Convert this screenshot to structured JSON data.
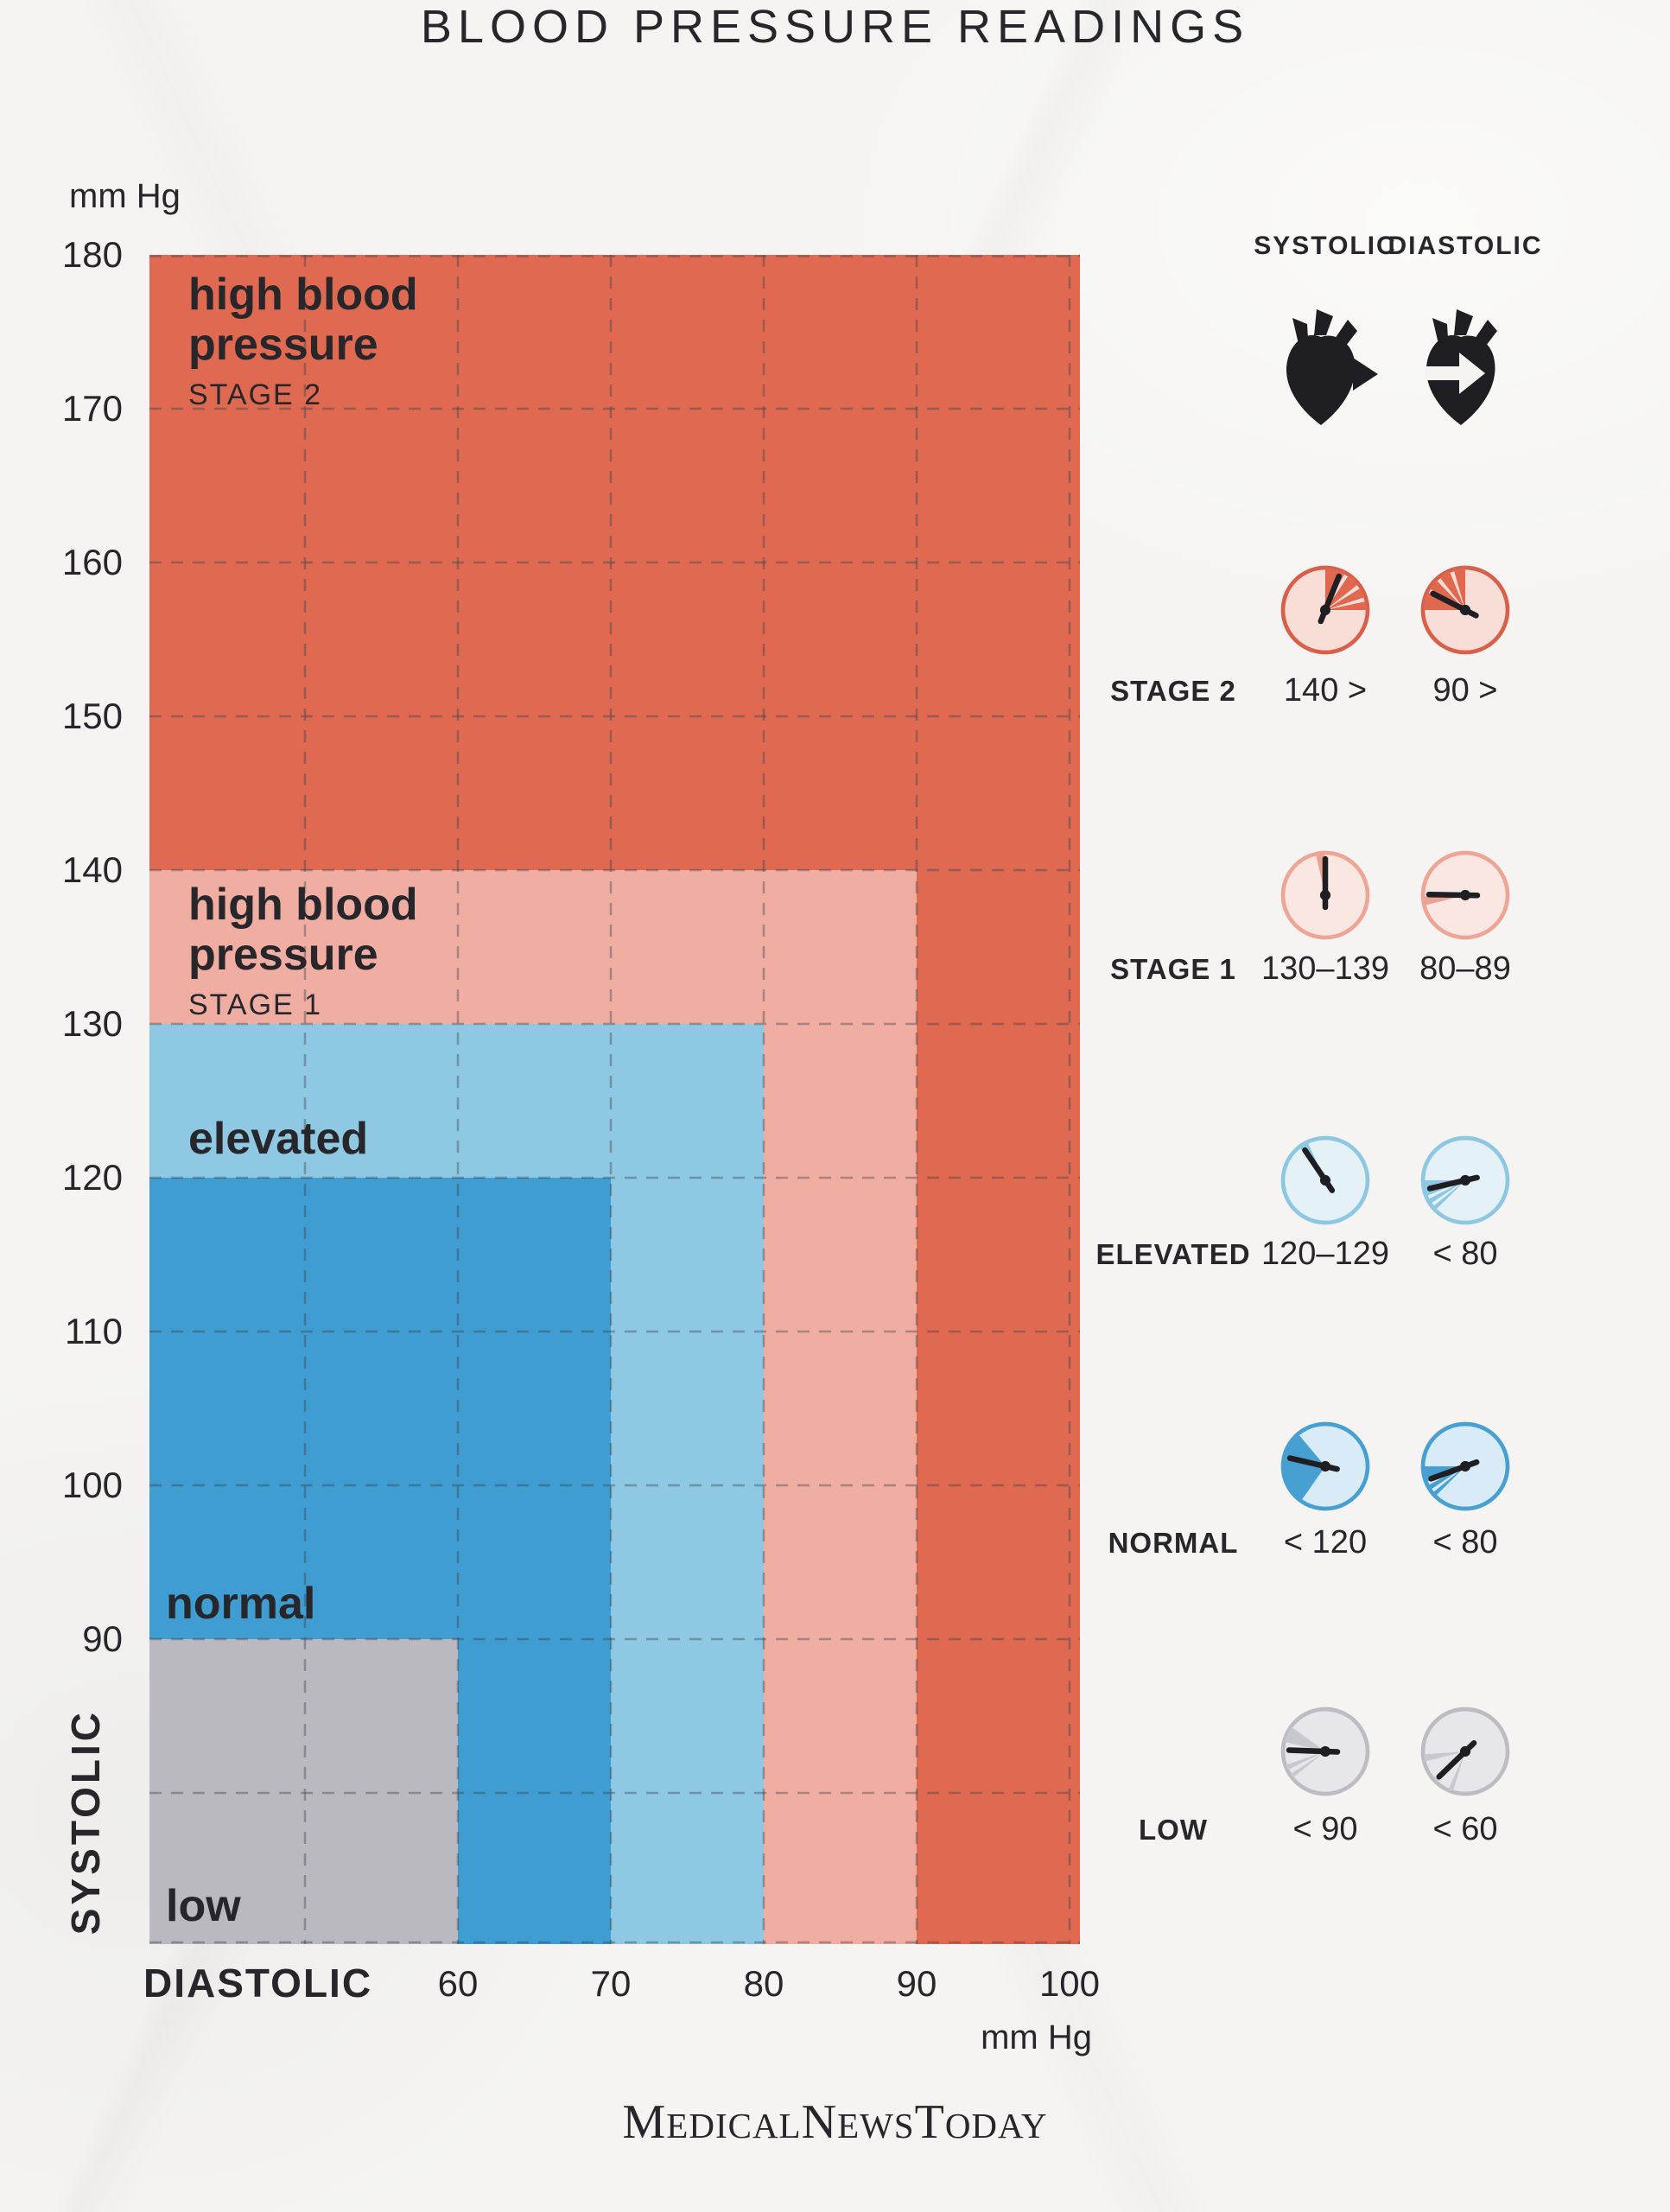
{
  "title": "BLOOD PRESSURE READINGS",
  "chart": {
    "unit": "mm Hg",
    "y_axis_label": "SYSTOLIC",
    "x_axis_label": "DIASTOLIC",
    "y_ticks": [
      "180",
      "170",
      "160",
      "150",
      "140",
      "130",
      "120",
      "110",
      "100",
      "90"
    ],
    "x_ticks": [
      "60",
      "70",
      "80",
      "90",
      "100"
    ],
    "zones": {
      "stage2": {
        "title": "high blood pressure",
        "sub": "STAGE 2"
      },
      "stage1": {
        "title": "high blood pressure",
        "sub": "STAGE 1"
      },
      "elevated": {
        "label": "elevated"
      },
      "normal": {
        "label": "normal"
      },
      "low": {
        "label": "low"
      }
    }
  },
  "legend": {
    "systolic_header": "SYSTOLIC",
    "diastolic_header": "DIASTOLIC",
    "rows": [
      {
        "label": "STAGE 2",
        "systolic": "140 >",
        "diastolic": "90 >",
        "sys_gauge": {
          "fill": "#f9ded7",
          "stroke": "#d8604a",
          "wedge": "#e0684f",
          "wedges": [
            [
              0,
              28
            ],
            [
              34,
              52
            ],
            [
              58,
              72
            ],
            [
              78,
              90
            ]
          ],
          "needle": 22
        },
        "dia_gauge": {
          "fill": "#f9ded7",
          "stroke": "#d8604a",
          "wedge": "#e0684f",
          "wedges": [
            [
              270,
              295
            ],
            [
              301,
              316
            ],
            [
              322,
              338
            ],
            [
              344,
              360
            ]
          ],
          "needle": 297
        }
      },
      {
        "label": "STAGE 1",
        "systolic": "130–139",
        "diastolic": "80–89",
        "sys_gauge": {
          "fill": "#fbe7e2",
          "stroke": "#eda695",
          "wedge": "#eca291",
          "wedges": [
            [
              347,
              359
            ]
          ],
          "needle": 0
        },
        "dia_gauge": {
          "fill": "#fbe7e2",
          "stroke": "#eda695",
          "wedge": "#eca291",
          "wedges": [
            [
              256,
              268
            ]
          ],
          "needle": 271
        }
      },
      {
        "label": "ELEVATED",
        "systolic": "120–129",
        "diastolic": "< 80",
        "sys_gauge": {
          "fill": "#e4f2f8",
          "stroke": "#8ec7e2",
          "wedge": "#8ec7e2",
          "wedges": [
            [
              322,
              335
            ]
          ],
          "needle": 326
        },
        "dia_gauge": {
          "fill": "#e4f2f8",
          "stroke": "#8ec7e2",
          "wedge": "#8ec7e2",
          "wedges": [
            [
              248,
              270
            ],
            [
              236,
              243
            ],
            [
              225,
              231
            ]
          ],
          "needle": 257
        }
      },
      {
        "label": "NORMAL",
        "systolic": "< 120",
        "diastolic": "< 80",
        "sys_gauge": {
          "fill": "#d8ebf6",
          "stroke": "#479fd2",
          "wedge": "#479fd2",
          "wedges": [
            [
              215,
              320
            ]
          ],
          "needle": 283
        },
        "dia_gauge": {
          "fill": "#d8ebf6",
          "stroke": "#479fd2",
          "wedge": "#479fd2",
          "wedges": [
            [
              248,
              270
            ],
            [
              236,
              243
            ],
            [
              225,
              231
            ]
          ],
          "needle": 250
        }
      },
      {
        "label": "LOW",
        "systolic": "< 90",
        "diastolic": "< 60",
        "sys_gauge": {
          "fill": "#e7e7eb",
          "stroke": "#bcbcc2",
          "wedge": "#c8c8cf",
          "wedges": [
            [
              283,
              306
            ],
            [
              244,
              251
            ],
            [
              231,
              237
            ]
          ],
          "needle": 272
        },
        "dia_gauge": {
          "fill": "#e7e7eb",
          "stroke": "#bcbcc2",
          "wedge": "#c8c8cf",
          "wedges": [
            [
              256,
              266
            ],
            [
              222,
              229
            ],
            [
              197,
              204
            ]
          ],
          "needle": 226
        }
      }
    ]
  },
  "footer": {
    "parts": [
      "M",
      "EDICAL",
      "N",
      "EWS",
      "T",
      "ODAY"
    ]
  },
  "chart_data": {
    "type": "area",
    "title": "BLOOD PRESSURE READINGS",
    "xlabel": "DIASTOLIC (mm Hg)",
    "ylabel": "SYSTOLIC (mm Hg)",
    "xlim": [
      40,
      101
    ],
    "ylim": [
      70,
      180
    ],
    "x_ticks": [
      60,
      70,
      80,
      90,
      100
    ],
    "y_ticks": [
      90,
      100,
      110,
      120,
      130,
      140,
      150,
      160,
      170,
      180
    ],
    "grid": true,
    "legend_position": "right",
    "zones": [
      {
        "name": "high blood pressure stage 2",
        "systolic": "140 >",
        "diastolic": "90 >",
        "systolic_range": [
          140,
          180
        ],
        "diastolic_range": [
          90,
          100
        ],
        "color": "#df6951"
      },
      {
        "name": "high blood pressure stage 1",
        "systolic": "130–139",
        "diastolic": "80–89",
        "systolic_range": [
          130,
          139
        ],
        "diastolic_range": [
          80,
          89
        ],
        "color": "#f0ada2"
      },
      {
        "name": "elevated",
        "systolic": "120–129",
        "diastolic": "< 80",
        "systolic_range": [
          120,
          129
        ],
        "diastolic_range": [
          40,
          79
        ],
        "color": "#8fc8e3"
      },
      {
        "name": "normal",
        "systolic": "< 120",
        "diastolic": "< 80",
        "systolic_range": [
          90,
          119
        ],
        "diastolic_range": [
          40,
          79
        ],
        "color": "#3f9dd2"
      },
      {
        "name": "low",
        "systolic": "< 90",
        "diastolic": "< 60",
        "systolic_range": [
          70,
          89
        ],
        "diastolic_range": [
          40,
          59
        ],
        "color": "#b9b9bf"
      }
    ]
  }
}
